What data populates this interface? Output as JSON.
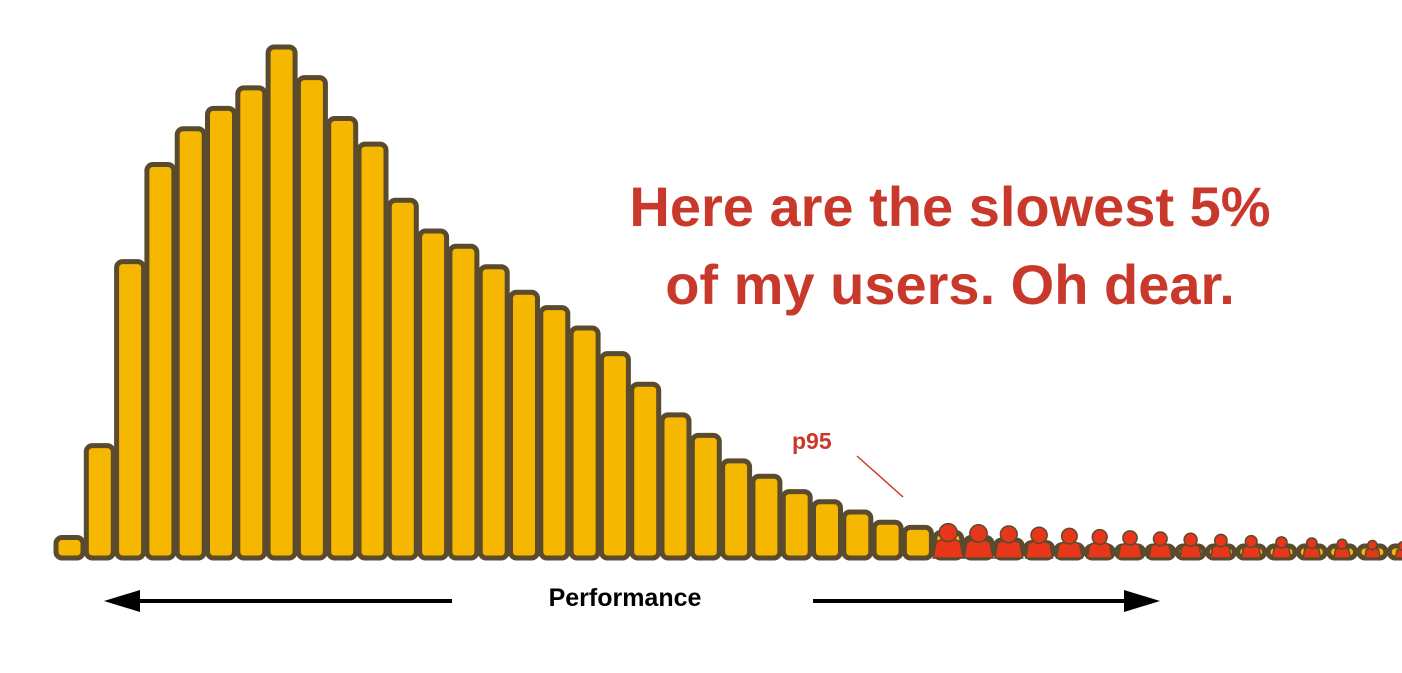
{
  "chart_data": {
    "type": "bar",
    "title": "",
    "xlabel": "Performance",
    "ylabel": "",
    "annotation": {
      "line1": "Here are the slowest 5%",
      "line2": "of my users. Oh dear."
    },
    "marker_label": "p95",
    "marker_index": 29,
    "values": [
      4,
      22,
      58,
      77,
      84,
      88,
      92,
      100,
      94,
      86,
      81,
      70,
      64,
      61,
      57,
      52,
      49,
      45,
      40,
      34,
      28,
      24,
      19,
      16,
      13,
      11,
      9,
      7,
      6,
      5,
      4,
      3.5,
      3,
      2.6,
      2.2,
      1.9,
      1.6,
      1.3,
      1.1,
      0.9,
      0.8,
      0.7,
      0.6,
      0.5,
      0.4,
      0.35,
      0.3,
      0.25,
      0.22,
      0.2,
      0.18
    ],
    "ylim": [
      0,
      100
    ],
    "grid": false,
    "legend": "none",
    "colors": {
      "bar_fill": "#f5b700",
      "bar_stroke": "#5a4a2e",
      "slow_users": "#e8361a",
      "annotation": "#c9392b",
      "arrow": "#000000"
    }
  }
}
